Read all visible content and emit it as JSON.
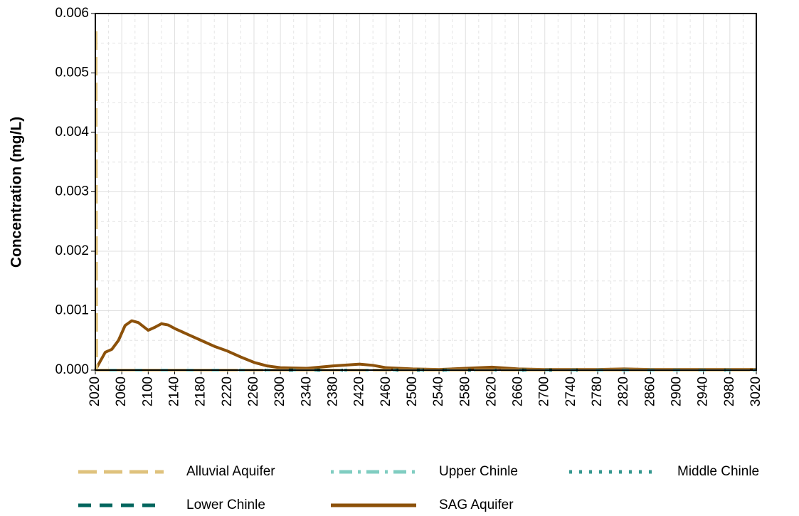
{
  "chart_data": {
    "type": "line",
    "y_label": "Concentration (mg/L)",
    "xlim": [
      2020,
      3020
    ],
    "xticks": [
      2020,
      2060,
      2100,
      2140,
      2180,
      2220,
      2260,
      2300,
      2340,
      2380,
      2420,
      2460,
      2500,
      2540,
      2580,
      2620,
      2660,
      2700,
      2740,
      2780,
      2820,
      2860,
      2900,
      2940,
      2980,
      3020
    ],
    "xminorticks": [
      2040,
      2080,
      2120,
      2160,
      2200,
      2240,
      2280,
      2320,
      2360,
      2400,
      2440,
      2480,
      2520,
      2560,
      2600,
      2640,
      2680,
      2720,
      2760,
      2800,
      2840,
      2880,
      2920,
      2960,
      3000
    ],
    "ylim": [
      0,
      0.006
    ],
    "yticks": [
      {
        "value": 0,
        "label": "0.000"
      },
      {
        "value": 0.001,
        "label": "0.001"
      },
      {
        "value": 0.002,
        "label": "0.002"
      },
      {
        "value": 0.003,
        "label": "0.003"
      },
      {
        "value": 0.004,
        "label": "0.004"
      },
      {
        "value": 0.005,
        "label": "0.005"
      },
      {
        "value": 0.006,
        "label": "0.006"
      }
    ],
    "yminorticks": [
      0.0005,
      0.0015,
      0.0025,
      0.0035,
      0.0045,
      0.0055
    ],
    "grid": true,
    "legend": "bottom",
    "series": [
      {
        "name": "Alluvial Aquifer",
        "color": "#dfc27d",
        "dash": "longdash",
        "x": [
          2021,
          2022,
          2030,
          3020
        ],
        "values": [
          0.0057,
          0,
          0,
          0
        ]
      },
      {
        "name": "Upper Chinle",
        "color": "#80cdc1",
        "dash": "dotdash",
        "x": [
          2020,
          3020
        ],
        "values": [
          0,
          0
        ]
      },
      {
        "name": "Middle Chinle",
        "color": "#35978f",
        "dash": "dotted",
        "x": [
          2020,
          3020
        ],
        "values": [
          0,
          0
        ]
      },
      {
        "name": "Lower Chinle",
        "color": "#01665e",
        "dash": "dashed",
        "x": [
          2020,
          3020
        ],
        "values": [
          0,
          0
        ]
      },
      {
        "name": "SAG Aquifer",
        "color": "#8c510a",
        "dash": "solid",
        "x": [
          2020,
          2025,
          2035,
          2045,
          2055,
          2065,
          2075,
          2085,
          2100,
          2110,
          2120,
          2130,
          2140,
          2160,
          2180,
          2200,
          2220,
          2240,
          2260,
          2280,
          2300,
          2340,
          2380,
          2420,
          2440,
          2460,
          2500,
          2540,
          2580,
          2620,
          2660,
          2700,
          2780,
          2820,
          2860,
          2940,
          3020
        ],
        "values": [
          0,
          0.0001,
          0.0003,
          0.00035,
          0.0005,
          0.00075,
          0.00083,
          0.0008,
          0.00067,
          0.00072,
          0.00078,
          0.00076,
          0.0007,
          0.0006,
          0.0005,
          0.0004,
          0.00032,
          0.00022,
          0.00013,
          7e-05,
          4e-05,
          3e-05,
          7e-05,
          0.0001,
          8e-05,
          4e-05,
          2e-05,
          1e-05,
          3e-05,
          5e-05,
          2e-05,
          1e-05,
          1e-05,
          2e-05,
          1e-05,
          1e-05,
          1e-05
        ]
      }
    ]
  }
}
